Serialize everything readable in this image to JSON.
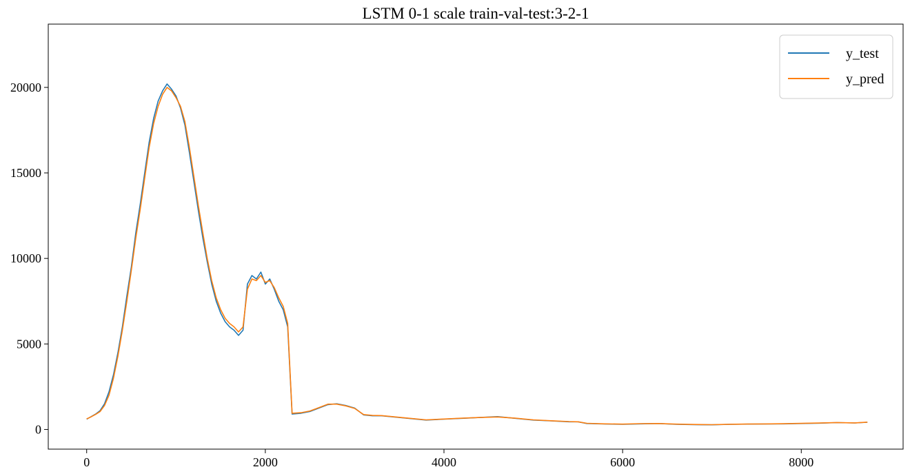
{
  "chart_data": {
    "type": "line",
    "title": "LSTM 0-1 scale train-val-test:3-2-1",
    "xlabel": "",
    "ylabel": "",
    "xlim": [
      -430,
      9140
    ],
    "ylim": [
      -1150,
      23700
    ],
    "xticks": [
      0,
      2000,
      4000,
      6000,
      8000
    ],
    "yticks": [
      0,
      5000,
      10000,
      15000,
      20000
    ],
    "xtick_labels": [
      "0",
      "2000",
      "4000",
      "6000",
      "8000"
    ],
    "ytick_labels": [
      "0",
      "5000",
      "10000",
      "15000",
      "20000"
    ],
    "grid": false,
    "legend_position": "upper right",
    "series": [
      {
        "name": "y_test",
        "color": "#1f77b4",
        "x": [
          0,
          50,
          100,
          150,
          200,
          250,
          300,
          350,
          400,
          450,
          500,
          550,
          600,
          650,
          700,
          750,
          800,
          850,
          900,
          950,
          1000,
          1050,
          1100,
          1150,
          1200,
          1250,
          1300,
          1350,
          1400,
          1450,
          1500,
          1550,
          1600,
          1650,
          1700,
          1750,
          1800,
          1850,
          1900,
          1950,
          2000,
          2050,
          2100,
          2150,
          2200,
          2250,
          2300,
          2400,
          2500,
          2600,
          2700,
          2800,
          2900,
          3000,
          3100,
          3200,
          3300,
          3400,
          3600,
          3800,
          4000,
          4200,
          4400,
          4600,
          4800,
          5000,
          5200,
          5400,
          5500,
          5600,
          5800,
          6000,
          6200,
          6400,
          6600,
          6800,
          7000,
          7200,
          7400,
          7600,
          7800,
          8000,
          8200,
          8400,
          8600,
          8740
        ],
        "y": [
          600,
          750,
          900,
          1100,
          1500,
          2200,
          3200,
          4500,
          6000,
          7800,
          9500,
          11500,
          13200,
          15000,
          16800,
          18200,
          19200,
          19800,
          20200,
          19900,
          19500,
          18800,
          17800,
          16200,
          14500,
          12800,
          11200,
          9800,
          8500,
          7500,
          6800,
          6300,
          6000,
          5800,
          5500,
          5800,
          8500,
          9000,
          8800,
          9200,
          8500,
          8800,
          8200,
          7500,
          7000,
          6000,
          900,
          950,
          1050,
          1250,
          1450,
          1500,
          1400,
          1250,
          850,
          800,
          800,
          750,
          650,
          550,
          600,
          650,
          700,
          750,
          650,
          550,
          500,
          450,
          450,
          350,
          320,
          300,
          330,
          350,
          300,
          280,
          270,
          300,
          310,
          320,
          330,
          350,
          370,
          400,
          380,
          420
        ]
      },
      {
        "name": "y_pred",
        "color": "#ff7f0e",
        "x": [
          0,
          50,
          100,
          150,
          200,
          250,
          300,
          350,
          400,
          450,
          500,
          550,
          600,
          650,
          700,
          750,
          800,
          850,
          900,
          950,
          1000,
          1050,
          1100,
          1150,
          1200,
          1250,
          1300,
          1350,
          1400,
          1450,
          1500,
          1550,
          1600,
          1650,
          1700,
          1750,
          1800,
          1850,
          1900,
          1950,
          2000,
          2050,
          2100,
          2150,
          2200,
          2250,
          2300,
          2400,
          2500,
          2600,
          2700,
          2800,
          2900,
          3000,
          3100,
          3200,
          3300,
          3400,
          3600,
          3800,
          4000,
          4200,
          4400,
          4600,
          4800,
          5000,
          5200,
          5400,
          5500,
          5600,
          5800,
          6000,
          6200,
          6400,
          6600,
          6800,
          7000,
          7200,
          7400,
          7600,
          7800,
          8000,
          8200,
          8400,
          8600,
          8740
        ],
        "y": [
          620,
          740,
          880,
          1050,
          1400,
          2000,
          3000,
          4300,
          5800,
          7500,
          9300,
          11200,
          12900,
          14700,
          16500,
          17900,
          18900,
          19600,
          20000,
          19800,
          19400,
          18900,
          18000,
          16500,
          14800,
          13100,
          11500,
          10000,
          8700,
          7700,
          7000,
          6500,
          6200,
          6000,
          5700,
          6000,
          8200,
          8800,
          8700,
          9000,
          8600,
          8700,
          8300,
          7700,
          7200,
          6200,
          950,
          980,
          1080,
          1280,
          1480,
          1480,
          1380,
          1230,
          870,
          820,
          810,
          760,
          660,
          560,
          610,
          660,
          700,
          730,
          660,
          560,
          510,
          460,
          450,
          360,
          330,
          310,
          340,
          350,
          310,
          290,
          280,
          305,
          315,
          325,
          335,
          355,
          375,
          405,
          385,
          430
        ]
      }
    ]
  }
}
